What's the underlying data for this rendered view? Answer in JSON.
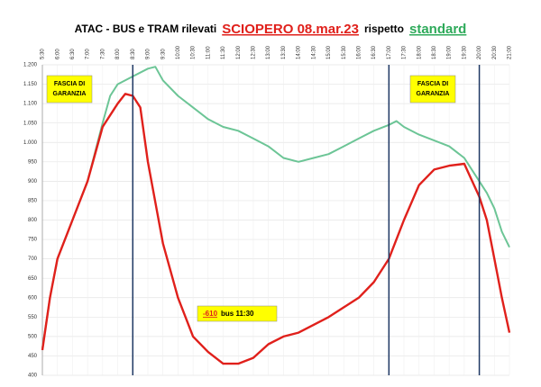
{
  "chart_data": {
    "type": "line",
    "title_parts": [
      {
        "text": "ATAC - BUS e TRAM  rilevati",
        "color": "#000000"
      },
      {
        "text": "SCIOPERO 08.mar.23",
        "color": "#e0201b",
        "underline": true
      },
      {
        "text": "rispetto",
        "color": "#000000"
      },
      {
        "text": "standard",
        "color": "#2eaa5a",
        "underline": true
      }
    ],
    "xlim": [
      5.5,
      21
    ],
    "xticks": [
      {
        "value": 5.5,
        "label": "5:30"
      },
      {
        "value": 6,
        "label": "6:00"
      },
      {
        "value": 6.5,
        "label": "6:30"
      },
      {
        "value": 7,
        "label": "7:00"
      },
      {
        "value": 7.5,
        "label": "7:30"
      },
      {
        "value": 8,
        "label": "8:00"
      },
      {
        "value": 8.5,
        "label": "8:30"
      },
      {
        "value": 9,
        "label": "9:00"
      },
      {
        "value": 9.5,
        "label": "9:30"
      },
      {
        "value": 10,
        "label": "10:00"
      },
      {
        "value": 10.5,
        "label": "10:30"
      },
      {
        "value": 11,
        "label": "11:00"
      },
      {
        "value": 11.5,
        "label": "11:30"
      },
      {
        "value": 12,
        "label": "12:00"
      },
      {
        "value": 12.5,
        "label": "12:30"
      },
      {
        "value": 13,
        "label": "13:00"
      },
      {
        "value": 13.5,
        "label": "13:30"
      },
      {
        "value": 14,
        "label": "14:00"
      },
      {
        "value": 14.5,
        "label": "14:30"
      },
      {
        "value": 15,
        "label": "15:00"
      },
      {
        "value": 15.5,
        "label": "15:30"
      },
      {
        "value": 16,
        "label": "16:00"
      },
      {
        "value": 16.5,
        "label": "16:30"
      },
      {
        "value": 17,
        "label": "17:00"
      },
      {
        "value": 17.5,
        "label": "17:30"
      },
      {
        "value": 18,
        "label": "18:00"
      },
      {
        "value": 18.5,
        "label": "18:30"
      },
      {
        "value": 19,
        "label": "19:00"
      },
      {
        "value": 19.5,
        "label": "19:30"
      },
      {
        "value": 20,
        "label": "20:00"
      },
      {
        "value": 20.5,
        "label": "20:30"
      },
      {
        "value": 21,
        "label": "21:00"
      }
    ],
    "ylim": [
      400,
      1200
    ],
    "yticks": [
      400,
      450,
      500,
      550,
      600,
      650,
      700,
      750,
      800,
      850,
      900,
      950,
      {
        "value": 1000,
        "label": "1.000"
      },
      {
        "value": 1050,
        "label": "1.050"
      },
      {
        "value": 1100,
        "label": "1.100"
      },
      {
        "value": 1150,
        "label": "1.150"
      },
      {
        "value": 1200,
        "label": "1.200"
      }
    ],
    "grid": true,
    "vlines": [
      8.5,
      17,
      20
    ],
    "vline_color": "#1f3864",
    "series": [
      {
        "color": "#6cc596",
        "x": [
          5.5,
          5.75,
          6,
          6.5,
          7,
          7.5,
          7.75,
          8,
          8.5,
          9,
          9.25,
          9.5,
          10,
          10.5,
          11,
          11.5,
          12,
          12.5,
          13,
          13.5,
          14,
          14.5,
          15,
          15.5,
          16,
          16.5,
          17,
          17.25,
          17.5,
          18,
          18.5,
          19,
          19.5,
          20,
          20.25,
          20.5,
          20.75,
          21
        ],
        "values": [
          470,
          600,
          700,
          800,
          900,
          1050,
          1120,
          1150,
          1170,
          1190,
          1195,
          1160,
          1120,
          1090,
          1060,
          1040,
          1030,
          1010,
          990,
          960,
          950,
          960,
          970,
          990,
          1010,
          1030,
          1045,
          1055,
          1040,
          1020,
          1005,
          990,
          960,
          900,
          870,
          830,
          770,
          730
        ]
      },
      {
        "color": "#e0201b",
        "x": [
          5.5,
          5.75,
          6,
          6.5,
          7,
          7.5,
          8,
          8.25,
          8.5,
          8.75,
          9,
          9.5,
          10,
          10.5,
          11,
          11.5,
          12,
          12.5,
          13,
          13.5,
          14,
          14.5,
          15,
          15.5,
          16,
          16.5,
          17,
          17.5,
          18,
          18.5,
          19,
          19.5,
          20,
          20.25,
          20.5,
          20.75,
          21
        ],
        "values": [
          465,
          600,
          700,
          800,
          900,
          1040,
          1100,
          1125,
          1120,
          1090,
          950,
          740,
          600,
          500,
          460,
          430,
          430,
          445,
          480,
          500,
          510,
          530,
          550,
          575,
          600,
          640,
          700,
          800,
          890,
          930,
          940,
          945,
          860,
          800,
          700,
          600,
          510
        ]
      }
    ],
    "boxes": [
      [
        "FASCIA DI",
        "GARANZIA"
      ],
      [
        "FASCIA DI",
        "GARANZIA"
      ]
    ],
    "annotation": {
      "highlight": "-610",
      "text": "bus 11:30"
    }
  }
}
